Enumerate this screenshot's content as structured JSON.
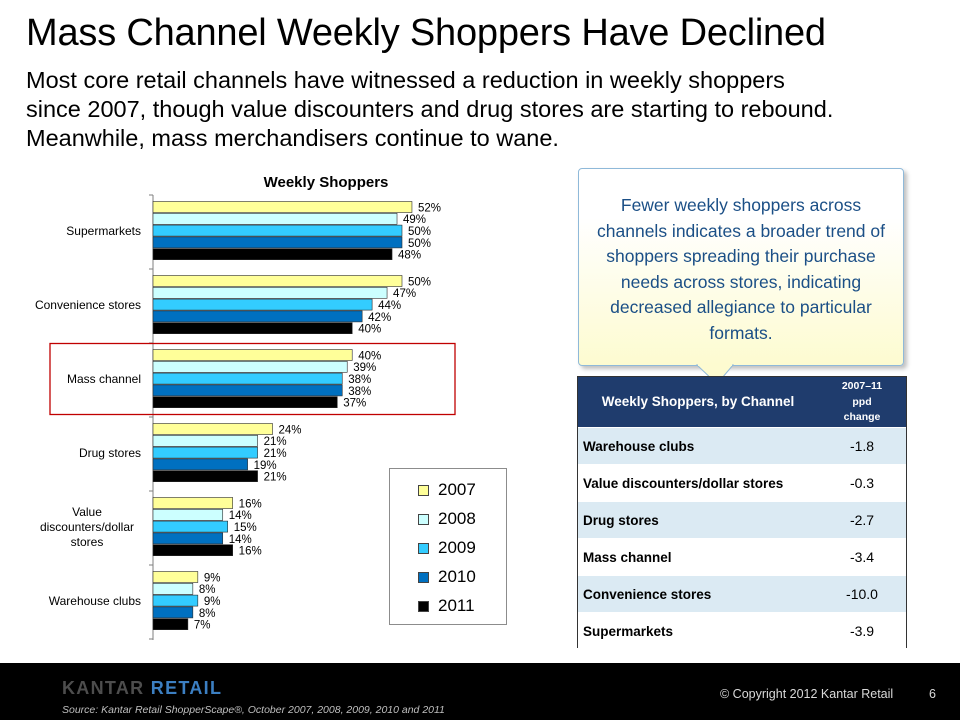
{
  "header": {
    "title": "Mass Channel Weekly Shoppers Have Declined",
    "subtitle_lines": [
      "Most core retail channels have witnessed a reduction in weekly shoppers",
      "since 2007, though value discounters and drug stores are starting to rebound.",
      "Meanwhile, mass merchandisers continue to wane."
    ]
  },
  "colors": {
    "series": [
      "#ffff99",
      "#ccffff",
      "#33ccff",
      "#0070c0",
      "#000000"
    ],
    "highlight_box": "#c00000",
    "table_header": "#1f3c6d",
    "row_shade": "#dbeaf3",
    "callout_text": "#1b4f86"
  },
  "chart_data": {
    "type": "bar",
    "orientation": "horizontal",
    "title": "Weekly Shoppers",
    "categories": [
      {
        "label": "Supermarkets",
        "lines": [
          "Supermarkets"
        ]
      },
      {
        "label": "Convenience stores",
        "lines": [
          "Convenience stores"
        ]
      },
      {
        "label": "Mass channel",
        "lines": [
          "Mass channel"
        ]
      },
      {
        "label": "Drug stores",
        "lines": [
          "Drug stores"
        ]
      },
      {
        "label": "Value discounters/dollar stores",
        "lines": [
          "Value",
          "discounters/dollar",
          "stores"
        ]
      },
      {
        "label": "Warehouse clubs",
        "lines": [
          "Warehouse clubs"
        ]
      }
    ],
    "series": [
      {
        "name": "2007",
        "values": [
          52,
          50,
          40,
          24,
          16,
          9
        ]
      },
      {
        "name": "2008",
        "values": [
          49,
          47,
          39,
          21,
          14,
          8
        ]
      },
      {
        "name": "2009",
        "values": [
          50,
          44,
          38,
          21,
          15,
          9
        ]
      },
      {
        "name": "2010",
        "values": [
          50,
          42,
          38,
          19,
          14,
          8
        ]
      },
      {
        "name": "2011",
        "values": [
          48,
          40,
          37,
          21,
          16,
          7
        ]
      }
    ],
    "value_suffix": "%",
    "highlighted_category": "Mass channel",
    "legend_position": "bottom-right"
  },
  "callout": {
    "text": "Fewer weekly shoppers across channels indicates a broader trend of shoppers spreading their purchase needs across stores, indicating decreased allegiance to particular formats."
  },
  "table": {
    "header_name": "Weekly Shoppers, by Channel",
    "header_change_lines": [
      "2007–11",
      "ppd",
      "change"
    ],
    "rows": [
      {
        "name": "Warehouse clubs",
        "value": "-1.8"
      },
      {
        "name": "Value discounters/dollar stores",
        "value": "-0.3"
      },
      {
        "name": "Drug stores",
        "value": "-2.7"
      },
      {
        "name": "Mass channel",
        "value": "-3.4"
      },
      {
        "name": "Convenience stores",
        "value": "-10.0"
      },
      {
        "name": "Supermarkets",
        "value": "-3.9"
      }
    ]
  },
  "footer": {
    "logo_word1": "KANTAR",
    "logo_word2": "RETAIL",
    "source": "Source: Kantar Retail ShopperScape®, October 2007, 2008, 2009, 2010 and 2011",
    "copyright": "© Copyright 2012 Kantar Retail",
    "page": "6"
  }
}
